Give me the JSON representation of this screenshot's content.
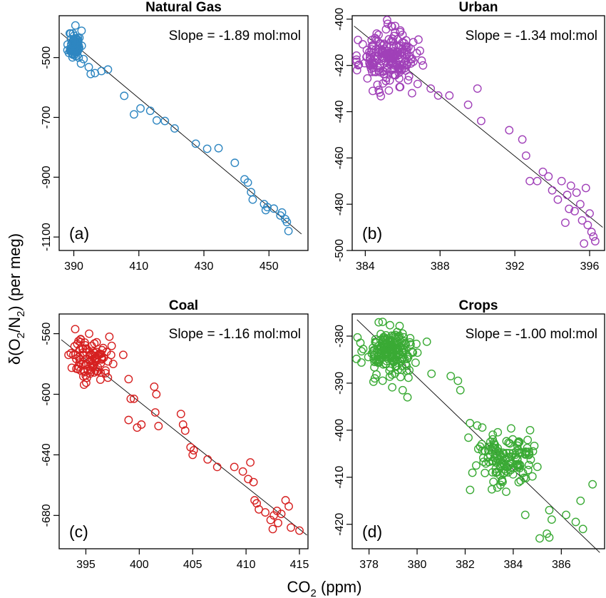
{
  "chart_data": [
    {
      "id": "a",
      "type": "scatter",
      "title": "Natural Gas",
      "panel_label": "(a)",
      "annotation": "Slope = -1.89 mol:mol",
      "color": "#2e86c1",
      "xlim": [
        385.5,
        462
      ],
      "ylim": [
        -1145,
        -360
      ],
      "xticks": [
        390,
        410,
        430,
        450
      ],
      "yticks": [
        -500,
        -700,
        -900,
        -1100
      ],
      "trend_line": {
        "x": [
          386,
          460
        ],
        "y": [
          -418,
          -1090
        ]
      },
      "points": {
        "cluster": {
          "count": 70,
          "cx": 390.3,
          "cy": -458,
          "sx": 0.9,
          "sy": 24,
          "seed": 11
        },
        "extra": [
          [
            391.5,
            -500
          ],
          [
            392.2,
            -520
          ],
          [
            393,
            -505
          ],
          [
            394.6,
            -532
          ],
          [
            395.2,
            -555
          ],
          [
            396.5,
            -552
          ],
          [
            398.5,
            -545
          ],
          [
            400.5,
            -540
          ],
          [
            405.5,
            -628
          ],
          [
            408.5,
            -690
          ],
          [
            410.5,
            -670
          ],
          [
            413.5,
            -678
          ],
          [
            415.5,
            -710
          ],
          [
            418,
            -712
          ],
          [
            421,
            -737
          ],
          [
            427.5,
            -788
          ],
          [
            431,
            -805
          ],
          [
            434.5,
            -803
          ],
          [
            439.5,
            -852
          ],
          [
            442.5,
            -907
          ],
          [
            443.5,
            -918
          ],
          [
            444.5,
            -950
          ],
          [
            445,
            -975
          ],
          [
            448.5,
            -990
          ],
          [
            449.5,
            -1000
          ],
          [
            449,
            -1010
          ],
          [
            451.5,
            -1005
          ],
          [
            453.5,
            -1028
          ],
          [
            454,
            -1018
          ],
          [
            455,
            -1040
          ],
          [
            455.5,
            -1050
          ],
          [
            456,
            -1080
          ]
        ]
      }
    },
    {
      "id": "b",
      "type": "scatter",
      "title": "Urban",
      "panel_label": "(b)",
      "annotation": "Slope = -1.34 mol:mol",
      "color": "#a040b8",
      "xlim": [
        383.3,
        396.8
      ],
      "ylim": [
        -500,
        -398.5
      ],
      "xticks": [
        384,
        388,
        392,
        396
      ],
      "yticks": [
        -400,
        -420,
        -440,
        -460,
        -480,
        -500
      ],
      "trend_line": {
        "x": [
          383.4,
          396.7
        ],
        "y": [
          -403,
          -490
        ]
      },
      "points": {
        "cluster": {
          "count": 200,
          "cx": 385.2,
          "cy": -417,
          "sx": 0.75,
          "sy": 5.5,
          "seed": 23
        },
        "extra": [
          [
            385.2,
            -402
          ],
          [
            385.4,
            -403
          ],
          [
            386.5,
            -432
          ],
          [
            386.8,
            -428
          ],
          [
            387.5,
            -430
          ],
          [
            387.9,
            -433
          ],
          [
            388.5,
            -433
          ],
          [
            389.5,
            -437
          ],
          [
            390,
            -430
          ],
          [
            390.2,
            -444
          ],
          [
            391.7,
            -448
          ],
          [
            392.4,
            -452
          ],
          [
            392.6,
            -459
          ],
          [
            392.8,
            -470
          ],
          [
            393.5,
            -466
          ],
          [
            393.8,
            -468
          ],
          [
            394,
            -474
          ],
          [
            394.3,
            -478
          ],
          [
            394.5,
            -470
          ],
          [
            394.8,
            -476
          ],
          [
            395,
            -472
          ],
          [
            395.2,
            -483
          ],
          [
            395.5,
            -480
          ],
          [
            395.6,
            -487
          ],
          [
            395.9,
            -489
          ],
          [
            396,
            -484
          ],
          [
            396.2,
            -494
          ],
          [
            396.3,
            -496
          ],
          [
            395.7,
            -497
          ],
          [
            394.7,
            -488
          ],
          [
            395.3,
            -475
          ],
          [
            394.9,
            -482
          ],
          [
            396.1,
            -492
          ],
          [
            393.2,
            -470
          ],
          [
            395.8,
            -473
          ]
        ]
      }
    },
    {
      "id": "c",
      "type": "scatter",
      "title": "Coal",
      "panel_label": "(c)",
      "annotation": "Slope = -1.16 mol:mol",
      "color": "#d62020",
      "xlim": [
        392.5,
        415.8
      ],
      "ylim": [
        -702,
        -547
      ],
      "xticks": [
        395,
        400,
        405,
        410,
        415
      ],
      "yticks": [
        -560,
        -600,
        -640,
        -680
      ],
      "trend_line": {
        "x": [
          392.7,
          415.7
        ],
        "y": [
          -564,
          -693
        ]
      },
      "points": {
        "cluster": {
          "count": 95,
          "cx": 395.5,
          "cy": -577,
          "sx": 0.9,
          "sy": 7,
          "seed": 37
        },
        "extra": [
          [
            394,
            -557
          ],
          [
            397.2,
            -562
          ],
          [
            398.5,
            -574
          ],
          [
            399,
            -590
          ],
          [
            399.2,
            -603
          ],
          [
            399.5,
            -603
          ],
          [
            399,
            -617
          ],
          [
            399.8,
            -622
          ],
          [
            400.2,
            -620
          ],
          [
            401.4,
            -595
          ],
          [
            401.6,
            -600
          ],
          [
            401.5,
            -612
          ],
          [
            401.8,
            -621
          ],
          [
            403.9,
            -613
          ],
          [
            404.1,
            -620
          ],
          [
            404.3,
            -624
          ],
          [
            404.8,
            -635
          ],
          [
            405,
            -640
          ],
          [
            405.1,
            -637
          ],
          [
            406.4,
            -643
          ],
          [
            407.3,
            -648
          ],
          [
            408.9,
            -648
          ],
          [
            409.7,
            -651
          ],
          [
            410.2,
            -656
          ],
          [
            410.4,
            -645
          ],
          [
            410.7,
            -658
          ],
          [
            410.8,
            -670
          ],
          [
            411,
            -672
          ],
          [
            411.2,
            -676
          ],
          [
            411.8,
            -678
          ],
          [
            412.3,
            -683
          ],
          [
            412.6,
            -680
          ],
          [
            412.9,
            -677
          ],
          [
            413,
            -685
          ],
          [
            413.3,
            -679
          ],
          [
            413.7,
            -670
          ],
          [
            414,
            -674
          ],
          [
            414.2,
            -688
          ],
          [
            415,
            -690
          ],
          [
            412.5,
            -689
          ]
        ]
      }
    },
    {
      "id": "d",
      "type": "scatter",
      "title": "Crops",
      "panel_label": "(d)",
      "annotation": "Slope = -1.00 mol:mol",
      "color": "#3aaa35",
      "xlim": [
        377.3,
        387.8
      ],
      "ylim": [
        -425.2,
        -375.3
      ],
      "xticks": [
        378,
        380,
        382,
        384,
        386
      ],
      "yticks": [
        -380,
        -390,
        -400,
        -410,
        -420
      ],
      "trend_line": {
        "x": [
          377.5,
          387.6
        ],
        "y": [
          -376.5,
          -426
        ]
      },
      "points": {
        "cluster": {
          "count": 190,
          "cx": 378.9,
          "cy": -383.5,
          "sx": 0.55,
          "sy": 2.6,
          "seed": 53
        },
        "cluster2": {
          "count": 140,
          "cx": 383.7,
          "cy": -406.5,
          "sx": 0.7,
          "sy": 3,
          "seed": 71
        },
        "extra": [
          [
            379.4,
            -391.5
          ],
          [
            379.6,
            -393
          ],
          [
            380.6,
            -388
          ],
          [
            381.4,
            -388.5
          ],
          [
            381.7,
            -389.5
          ],
          [
            382.2,
            -398.5
          ],
          [
            382.5,
            -399
          ],
          [
            385.5,
            -417
          ],
          [
            385.6,
            -419
          ],
          [
            385.4,
            -422
          ],
          [
            385.5,
            -422.8
          ],
          [
            386.2,
            -418
          ],
          [
            386.6,
            -419.5
          ],
          [
            386.9,
            -421
          ],
          [
            387.3,
            -411.5
          ],
          [
            386.8,
            -415
          ],
          [
            384.5,
            -418
          ],
          [
            385.1,
            -423
          ],
          [
            384.7,
            -400
          ],
          [
            381.8,
            -391.5
          ]
        ]
      }
    }
  ],
  "y_axis_title": {
    "pre": "δ(O",
    "s1": "2",
    "mid": "/N",
    "s2": "2",
    "post": ") (per meg)"
  },
  "x_axis_title": {
    "pre": "CO",
    "sub": "2",
    "post": " (ppm)"
  }
}
